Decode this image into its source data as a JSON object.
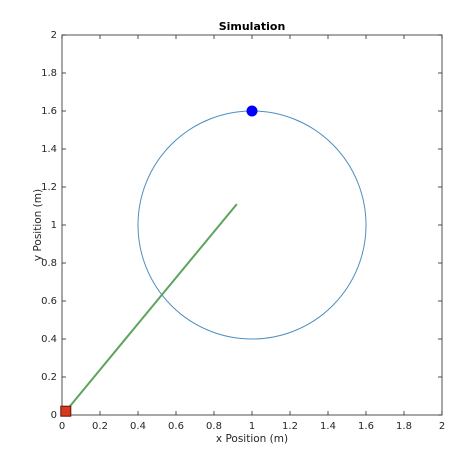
{
  "chart_data": {
    "type": "line",
    "title": "Simulation",
    "x_label": "x Position (m)",
    "y_label": "y Position (m)",
    "xlim": [
      0,
      2
    ],
    "ylim": [
      0,
      2
    ],
    "xticks": [
      0,
      0.2,
      0.4,
      0.6,
      0.8,
      1,
      1.2,
      1.4,
      1.6,
      1.8,
      2
    ],
    "yticks": [
      0,
      0.2,
      0.4,
      0.6,
      0.8,
      1,
      1.2,
      1.4,
      1.6,
      1.8,
      2
    ],
    "grid": false,
    "circles": [
      {
        "center_x": 1,
        "center_y": 1,
        "radius": 0.6,
        "color": "#4d8fbf"
      }
    ],
    "lines": [
      {
        "x": [
          0.02,
          0.92
        ],
        "y": [
          0.02,
          1.11
        ],
        "color": "#5ea35e"
      }
    ],
    "points": [
      {
        "x": 1,
        "y": 1.6,
        "color": "#0000ff",
        "marker": "circle"
      },
      {
        "x": 0.02,
        "y": 0.02,
        "color": "#d9381e",
        "marker": "square"
      }
    ]
  }
}
